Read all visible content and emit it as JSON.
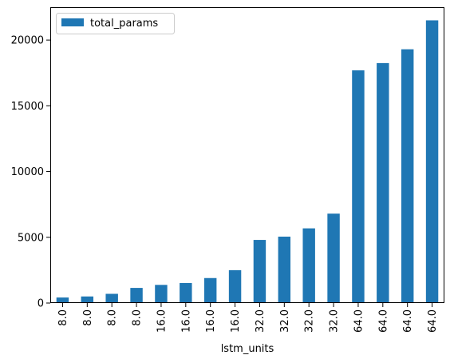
{
  "chart_data": {
    "type": "bar",
    "categories": [
      "8.0",
      "8.0",
      "8.0",
      "8.0",
      "16.0",
      "16.0",
      "16.0",
      "16.0",
      "32.0",
      "32.0",
      "32.0",
      "32.0",
      "64.0",
      "64.0",
      "64.0",
      "64.0"
    ],
    "series": [
      {
        "name": "total_params",
        "color": "#1f77b4",
        "values": [
          420,
          500,
          700,
          1150,
          1380,
          1520,
          1900,
          2500,
          4800,
          5050,
          5680,
          6800,
          17700,
          18250,
          19300,
          21500
        ]
      }
    ],
    "title": "",
    "xlabel": "lstm_units",
    "ylabel": "",
    "ylim": [
      0,
      22500
    ],
    "yticks": [
      0,
      5000,
      10000,
      15000,
      20000
    ],
    "grid": false,
    "legend": {
      "position": "top-left",
      "entries": [
        "total_params"
      ]
    }
  }
}
